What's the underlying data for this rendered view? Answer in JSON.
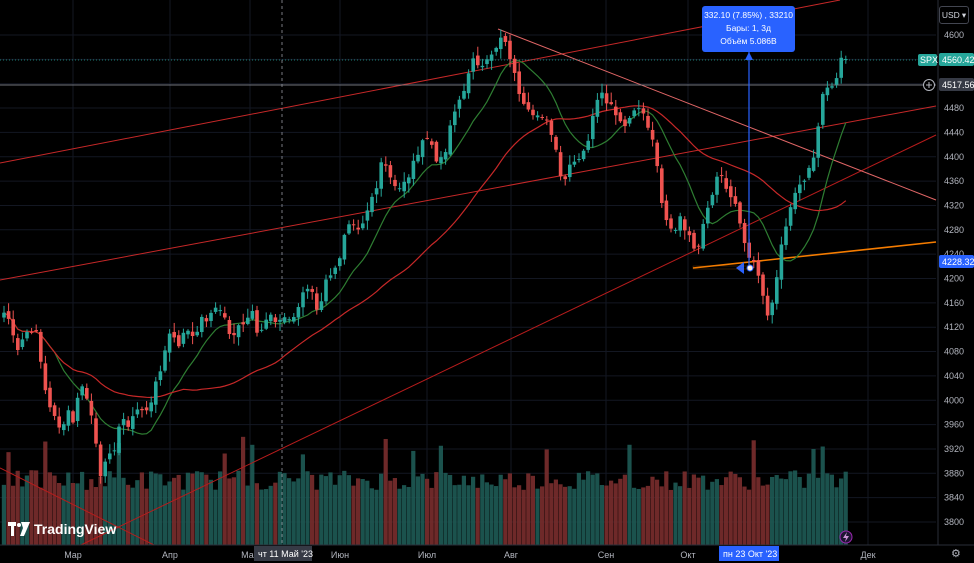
{
  "logo": {
    "text": "TradingView",
    "icon": "tradingview-logo-icon"
  },
  "currency": {
    "label": "USD",
    "icon": "chevron-down-icon"
  },
  "tooltip": {
    "line1": "332.10 (7.85%) , 33210",
    "line2": "Бары: 1, 3д",
    "line3": "Объём 5.086B"
  },
  "badges": {
    "spx_label": "SPX",
    "spx_value": "4560.42",
    "crosshair_value": "4517.56",
    "low_value": "4228.32",
    "crosshair_date": "чт 11 Май '23",
    "selected_date": "пн 23 Окт '23"
  },
  "colors": {
    "up": "#26a69a",
    "down": "#ef5350",
    "ma_short": "#2e7d32",
    "ma_long": "#c62828",
    "trend_orange": "#f57c00",
    "measure": "#2962ff",
    "background": "#000000"
  },
  "chart_data": {
    "type": "candlestick",
    "instrument": "SPX",
    "y_ticks": [
      3800,
      3840,
      3880,
      3920,
      3960,
      4000,
      4040,
      4080,
      4120,
      4160,
      4200,
      4240,
      4280,
      4320,
      4360,
      4400,
      4440,
      4480,
      4520,
      4560,
      4600
    ],
    "x_ticks": [
      "Мар",
      "Апр",
      "Май",
      "Июн",
      "Июл",
      "Авг",
      "Сен",
      "Окт",
      "Дек"
    ],
    "ylim": [
      3770,
      4622
    ],
    "close_path": [
      [
        0,
        4160
      ],
      [
        5,
        4140
      ],
      [
        10,
        4130
      ],
      [
        18,
        4085
      ],
      [
        25,
        4110
      ],
      [
        35,
        4120
      ],
      [
        45,
        4020
      ],
      [
        52,
        3980
      ],
      [
        60,
        3950
      ],
      [
        68,
        3985
      ],
      [
        75,
        3960
      ],
      [
        80,
        4040
      ],
      [
        88,
        3995
      ],
      [
        94,
        3960
      ],
      [
        100,
        3880
      ],
      [
        108,
        3900
      ],
      [
        114,
        3920
      ],
      [
        120,
        3965
      ],
      [
        128,
        3960
      ],
      [
        136,
        3985
      ],
      [
        144,
        3980
      ],
      [
        150,
        3995
      ],
      [
        160,
        4045
      ],
      [
        168,
        4110
      ],
      [
        175,
        4105
      ],
      [
        180,
        4090
      ],
      [
        186,
        4120
      ],
      [
        194,
        4105
      ],
      [
        200,
        4130
      ],
      [
        210,
        4135
      ],
      [
        218,
        4160
      ],
      [
        226,
        4130
      ],
      [
        232,
        4095
      ],
      [
        238,
        4120
      ],
      [
        246,
        4135
      ],
      [
        252,
        4150
      ],
      [
        258,
        4110
      ],
      [
        264,
        4130
      ],
      [
        270,
        4140
      ],
      [
        278,
        4120
      ],
      [
        285,
        4140
      ],
      [
        292,
        4130
      ],
      [
        300,
        4160
      ],
      [
        306,
        4185
      ],
      [
        312,
        4180
      ],
      [
        318,
        4145
      ],
      [
        326,
        4195
      ],
      [
        332,
        4215
      ],
      [
        340,
        4230
      ],
      [
        346,
        4280
      ],
      [
        352,
        4285
      ],
      [
        358,
        4275
      ],
      [
        364,
        4290
      ],
      [
        370,
        4325
      ],
      [
        376,
        4350
      ],
      [
        382,
        4400
      ],
      [
        388,
        4380
      ],
      [
        394,
        4355
      ],
      [
        400,
        4345
      ],
      [
        406,
        4360
      ],
      [
        412,
        4380
      ],
      [
        418,
        4410
      ],
      [
        424,
        4435
      ],
      [
        432,
        4420
      ],
      [
        438,
        4390
      ],
      [
        444,
        4395
      ],
      [
        450,
        4445
      ],
      [
        456,
        4480
      ],
      [
        462,
        4505
      ],
      [
        468,
        4530
      ],
      [
        474,
        4560
      ],
      [
        480,
        4550
      ],
      [
        486,
        4565
      ],
      [
        494,
        4565
      ],
      [
        500,
        4595
      ],
      [
        505,
        4585
      ],
      [
        511,
        4560
      ],
      [
        517,
        4515
      ],
      [
        523,
        4495
      ],
      [
        530,
        4480
      ],
      [
        536,
        4470
      ],
      [
        542,
        4460
      ],
      [
        548,
        4455
      ],
      [
        554,
        4430
      ],
      [
        560,
        4375
      ],
      [
        566,
        4365
      ],
      [
        572,
        4400
      ],
      [
        578,
        4395
      ],
      [
        584,
        4415
      ],
      [
        590,
        4435
      ],
      [
        596,
        4495
      ],
      [
        602,
        4510
      ],
      [
        608,
        4490
      ],
      [
        614,
        4480
      ],
      [
        620,
        4460
      ],
      [
        626,
        4455
      ],
      [
        632,
        4470
      ],
      [
        638,
        4490
      ],
      [
        644,
        4465
      ],
      [
        650,
        4440
      ],
      [
        656,
        4405
      ],
      [
        662,
        4315
      ],
      [
        668,
        4285
      ],
      [
        674,
        4275
      ],
      [
        680,
        4305
      ],
      [
        686,
        4280
      ],
      [
        692,
        4255
      ],
      [
        698,
        4255
      ],
      [
        704,
        4300
      ],
      [
        710,
        4330
      ],
      [
        716,
        4365
      ],
      [
        722,
        4370
      ],
      [
        728,
        4340
      ],
      [
        734,
        4325
      ],
      [
        740,
        4290
      ],
      [
        746,
        4250
      ],
      [
        752,
        4230
      ],
      [
        758,
        4205
      ],
      [
        764,
        4165
      ],
      [
        768,
        4130
      ],
      [
        774,
        4170
      ],
      [
        780,
        4240
      ],
      [
        786,
        4280
      ],
      [
        792,
        4330
      ],
      [
        798,
        4350
      ],
      [
        804,
        4355
      ],
      [
        810,
        4380
      ],
      [
        816,
        4410
      ],
      [
        822,
        4500
      ],
      [
        828,
        4510
      ],
      [
        834,
        4520
      ],
      [
        840,
        4555
      ],
      [
        846,
        4560
      ]
    ],
    "indicators": [
      "moving-average-short",
      "moving-average-long",
      "trendlines",
      "volume"
    ],
    "volume_bars": true
  }
}
